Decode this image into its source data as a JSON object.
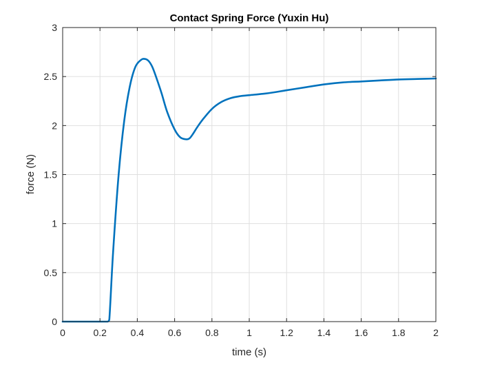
{
  "chart_data": {
    "type": "line",
    "title": "Contact Spring Force (Yuxin Hu)",
    "xlabel": "time (s)",
    "ylabel": "force (N)",
    "xlim": [
      0,
      2
    ],
    "ylim": [
      0,
      3
    ],
    "grid": true,
    "legend": "none",
    "xticks": [
      0,
      0.2,
      0.4,
      0.6,
      0.8,
      1,
      1.2,
      1.4,
      1.6,
      1.8,
      2
    ],
    "xtick_labels": [
      "0",
      "0.2",
      "0.4",
      "0.6",
      "0.8",
      "1",
      "1.2",
      "1.4",
      "1.6",
      "1.8",
      "2"
    ],
    "yticks": [
      0,
      0.5,
      1,
      1.5,
      2,
      2.5,
      3
    ],
    "ytick_labels": [
      "0",
      "0.5",
      "1",
      "1.5",
      "2",
      "2.5",
      "3"
    ],
    "series": [
      {
        "color": "#0072BD",
        "x": [
          0,
          0.1,
          0.2,
          0.24,
          0.25,
          0.27,
          0.3,
          0.33,
          0.36,
          0.39,
          0.42,
          0.44,
          0.46,
          0.48,
          0.5,
          0.53,
          0.56,
          0.6,
          0.63,
          0.66,
          0.68,
          0.7,
          0.72,
          0.75,
          0.8,
          0.85,
          0.9,
          0.95,
          1.0,
          1.1,
          1.2,
          1.3,
          1.4,
          1.5,
          1.6,
          1.7,
          1.8,
          1.9,
          2.0
        ],
        "y": [
          0,
          0,
          0,
          0,
          0.02,
          0.7,
          1.5,
          2.05,
          2.4,
          2.6,
          2.67,
          2.68,
          2.66,
          2.6,
          2.5,
          2.33,
          2.14,
          1.96,
          1.88,
          1.86,
          1.87,
          1.92,
          1.98,
          2.06,
          2.17,
          2.24,
          2.28,
          2.3,
          2.31,
          2.33,
          2.36,
          2.39,
          2.42,
          2.44,
          2.45,
          2.46,
          2.47,
          2.475,
          2.48
        ]
      }
    ]
  }
}
